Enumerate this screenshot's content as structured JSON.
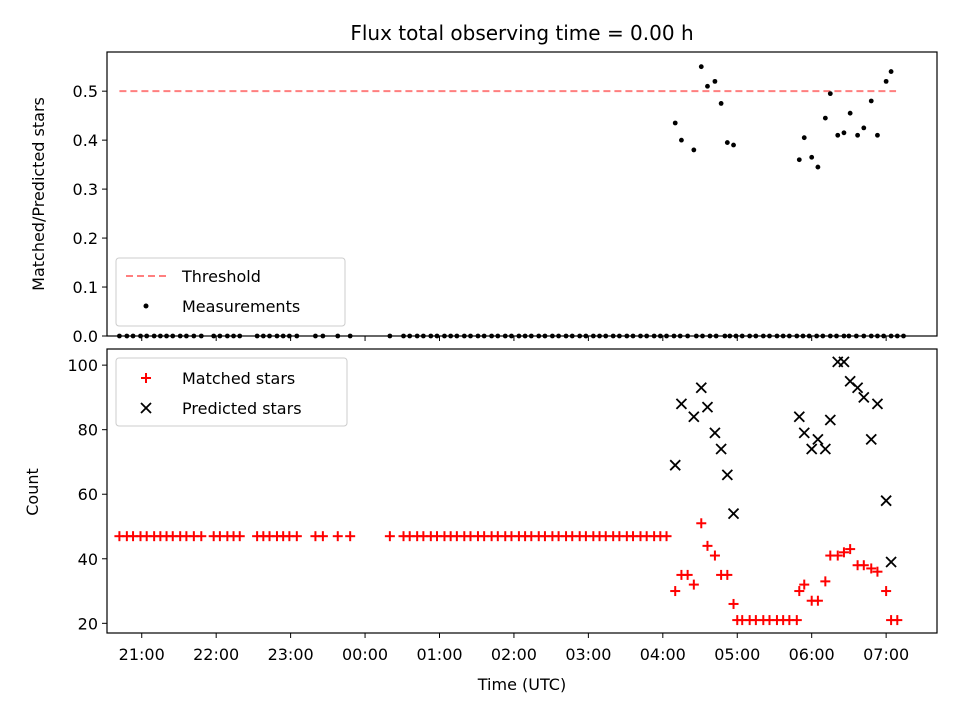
{
  "chart_data": [
    {
      "type": "scatter",
      "title": "Flux total observing time = 0.00 h",
      "xlabel": "",
      "ylabel": "Matched/Predicted stars",
      "xlim": [
        "20:32",
        "07:41"
      ],
      "ylim": [
        0,
        0.58
      ],
      "yticks": [
        "0.0",
        "0.1",
        "0.2",
        "0.3",
        "0.4",
        "0.5"
      ],
      "grid": false,
      "legend_position": "lower-left",
      "threshold": {
        "name": "Threshold",
        "value": 0.5,
        "x_range": [
          "20:42",
          "07:08"
        ],
        "color": "#ff7f7f",
        "style": "dashed"
      },
      "series": [
        {
          "name": "Measurements",
          "color": "#000000",
          "marker": "dot",
          "x": [
            "20:42",
            "20:48",
            "20:53",
            "20:59",
            "21:04",
            "21:10",
            "21:15",
            "21:20",
            "21:25",
            "21:31",
            "21:36",
            "21:42",
            "21:48",
            "21:58",
            "22:03",
            "22:09",
            "22:14",
            "22:19",
            "22:33",
            "22:38",
            "22:43",
            "22:49",
            "22:54",
            "22:59",
            "23:05",
            "23:20",
            "23:26",
            "23:38",
            "23:48",
            "00:20",
            "00:31",
            "00:36",
            "00:42",
            "00:47",
            "00:53",
            "00:58",
            "01:04",
            "01:09",
            "01:14",
            "01:20",
            "01:25",
            "01:31",
            "01:36",
            "01:42",
            "01:47",
            "01:53",
            "01:58",
            "02:04",
            "02:09",
            "02:14",
            "02:20",
            "02:25",
            "02:31",
            "02:36",
            "02:42",
            "02:47",
            "02:53",
            "02:58",
            "03:04",
            "03:09",
            "03:14",
            "03:20",
            "03:25",
            "03:31",
            "03:36",
            "03:42",
            "03:47",
            "03:53",
            "03:58",
            "04:03",
            "04:09",
            "04:14",
            "04:20",
            "04:27",
            "04:32",
            "04:38",
            "04:43",
            "04:50",
            "04:54",
            "04:59",
            "05:04",
            "05:10",
            "05:15",
            "05:21",
            "05:26",
            "05:32",
            "05:37",
            "05:42",
            "05:48",
            "05:53",
            "05:58",
            "06:04",
            "06:09",
            "06:15",
            "06:20",
            "06:26",
            "06:30",
            "06:36",
            "06:42",
            "06:48",
            "06:53",
            "06:58",
            "07:04",
            "07:09"
          ],
          "y": [
            0,
            0,
            0,
            0,
            0,
            0,
            0,
            0,
            0,
            0,
            0,
            0,
            0,
            0,
            0,
            0,
            0,
            0,
            0,
            0,
            0,
            0,
            0,
            0,
            0,
            0,
            0,
            0,
            0,
            0,
            0,
            0,
            0,
            0,
            0,
            0,
            0,
            0,
            0,
            0,
            0,
            0,
            0,
            0,
            0,
            0,
            0,
            0,
            0,
            0,
            0,
            0,
            0,
            0,
            0,
            0,
            0,
            0,
            0,
            0,
            0,
            0,
            0,
            0,
            0,
            0,
            0,
            0,
            0,
            0,
            0,
            0,
            0,
            0,
            0,
            0,
            0,
            0,
            0,
            0,
            0,
            0,
            0,
            0,
            0,
            0,
            0,
            0,
            0,
            0,
            0,
            0,
            0,
            0,
            0,
            0,
            0,
            0,
            0,
            0,
            0,
            0,
            0,
            0
          ]
        }
      ],
      "nonzero_measurements": {
        "x": [
          "04:10",
          "04:15",
          "04:25",
          "04:31",
          "04:36",
          "04:42",
          "04:47",
          "04:52",
          "04:57",
          "05:50",
          "05:54",
          "06:00",
          "06:05",
          "06:11",
          "06:15",
          "06:21",
          "06:26",
          "06:31",
          "06:37",
          "06:42",
          "06:48",
          "06:53",
          "07:00"
        ],
        "y": [
          0.435,
          0.4,
          0.38,
          0.55,
          0.51,
          0.52,
          0.475,
          0.395,
          0.39,
          0.36,
          0.405,
          0.365,
          0.345,
          0.445,
          0.495,
          0.41,
          0.415,
          0.455,
          0.41,
          0.425,
          0.48,
          0.41,
          0.52
        ]
      },
      "extra_point": {
        "x": "07:04",
        "y": 0.54
      }
    },
    {
      "type": "scatter",
      "title": "",
      "xlabel": "Time (UTC)",
      "ylabel": "Count",
      "xlim": [
        "20:32",
        "07:41"
      ],
      "ylim": [
        17,
        105
      ],
      "yticks": [
        "20",
        "40",
        "60",
        "80",
        "100"
      ],
      "xticks": [
        "21:00",
        "22:00",
        "23:00",
        "00:00",
        "01:00",
        "02:00",
        "03:00",
        "04:00",
        "05:00",
        "06:00",
        "07:00"
      ],
      "grid": false,
      "legend_position": "upper-left",
      "series": [
        {
          "name": "Matched stars",
          "color": "#ff0000",
          "marker": "plus",
          "x": [
            "20:42",
            "20:48",
            "20:53",
            "20:59",
            "21:04",
            "21:10",
            "21:15",
            "21:20",
            "21:25",
            "21:31",
            "21:36",
            "21:42",
            "21:48",
            "21:58",
            "22:03",
            "22:09",
            "22:14",
            "22:19",
            "22:33",
            "22:38",
            "22:43",
            "22:49",
            "22:54",
            "22:59",
            "23:05",
            "23:20",
            "23:26",
            "23:38",
            "23:48",
            "00:20",
            "00:31",
            "00:36",
            "00:42",
            "00:47",
            "00:53",
            "00:58",
            "01:04",
            "01:09",
            "01:14",
            "01:20",
            "01:25",
            "01:31",
            "01:36",
            "01:42",
            "01:47",
            "01:53",
            "01:58",
            "02:04",
            "02:09",
            "02:14",
            "02:20",
            "02:25",
            "02:31",
            "02:36",
            "02:42",
            "02:47",
            "02:53",
            "02:58",
            "03:04",
            "03:09",
            "03:14",
            "03:20",
            "03:25",
            "03:31",
            "03:36",
            "03:42",
            "03:47",
            "03:53",
            "03:58",
            "04:03",
            "04:10",
            "04:15",
            "04:20",
            "04:25",
            "04:31",
            "04:36",
            "04:42",
            "04:47",
            "04:52",
            "04:57",
            "05:00",
            "05:04",
            "05:10",
            "05:15",
            "05:21",
            "05:26",
            "05:32",
            "05:37",
            "05:42",
            "05:48",
            "05:50",
            "05:54",
            "06:00",
            "06:05",
            "06:11",
            "06:15",
            "06:21",
            "06:26",
            "06:31",
            "06:37",
            "06:42",
            "06:48",
            "06:53",
            "07:00",
            "07:04",
            "07:09"
          ],
          "y": [
            47,
            47,
            47,
            47,
            47,
            47,
            47,
            47,
            47,
            47,
            47,
            47,
            47,
            47,
            47,
            47,
            47,
            47,
            47,
            47,
            47,
            47,
            47,
            47,
            47,
            47,
            47,
            47,
            47,
            47,
            47,
            47,
            47,
            47,
            47,
            47,
            47,
            47,
            47,
            47,
            47,
            47,
            47,
            47,
            47,
            47,
            47,
            47,
            47,
            47,
            47,
            47,
            47,
            47,
            47,
            47,
            47,
            47,
            47,
            47,
            47,
            47,
            47,
            47,
            47,
            47,
            47,
            47,
            47,
            47,
            30,
            35,
            35,
            32,
            51,
            44,
            41,
            35,
            35,
            26,
            21,
            21,
            21,
            21,
            21,
            21,
            21,
            21,
            21,
            21,
            30,
            32,
            27,
            27,
            33,
            41,
            41,
            42,
            43,
            38,
            38,
            37,
            36,
            30,
            21,
            21
          ]
        },
        {
          "name": "Predicted stars",
          "color": "#000000",
          "marker": "x",
          "x": [
            "04:10",
            "04:15",
            "04:25",
            "04:31",
            "04:36",
            "04:42",
            "04:47",
            "04:52",
            "04:57",
            "05:50",
            "05:54",
            "06:00",
            "06:05",
            "06:11",
            "06:15",
            "06:21",
            "06:26",
            "06:31",
            "06:37",
            "06:42",
            "06:48",
            "06:53",
            "07:00",
            "07:04"
          ],
          "y": [
            69,
            88,
            84,
            93,
            87,
            79,
            74,
            66,
            54,
            84,
            79,
            74,
            77,
            74,
            83,
            101,
            101,
            95,
            93,
            90,
            77,
            88,
            58,
            39
          ]
        }
      ]
    }
  ]
}
